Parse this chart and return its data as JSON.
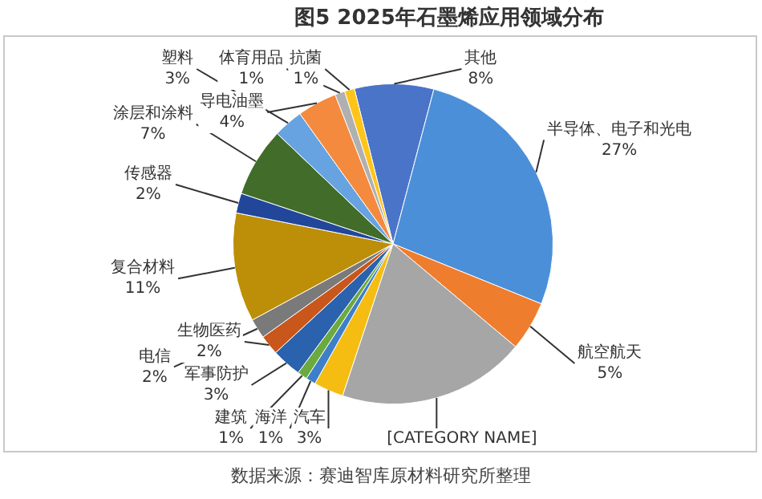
{
  "chart_data": {
    "type": "pie",
    "title": "图5  2025年石墨烯应用领域分布",
    "categories": [
      "其他",
      "半导体、电子和光电",
      "航空航天",
      "[CATEGORY NAME]",
      "汽车",
      "海洋",
      "建筑",
      "军事防护",
      "生物医药",
      "电信",
      "复合材料",
      "传感器",
      "涂层和涂料",
      "塑料",
      "导电油墨",
      "体育用品",
      "抗菌"
    ],
    "values": [
      8,
      27,
      5,
      19,
      3,
      1,
      1,
      3,
      2,
      2,
      11,
      2,
      7,
      3,
      4,
      1,
      1
    ],
    "value_labels": [
      "8%",
      "27%",
      "5%",
      null,
      "3%",
      "1%",
      "1%",
      "3%",
      "2%",
      "2%",
      "11%",
      "2%",
      "7%",
      "3%",
      "4%",
      "1%",
      "1%"
    ],
    "colors": [
      "#4a74c8",
      "#4b8fd8",
      "#ef7d2e",
      "#a6a6a6",
      "#f5bd12",
      "#3f7fc8",
      "#6aaa3f",
      "#2a62ad",
      "#c9561a",
      "#7a7a7a",
      "#bd8e08",
      "#22479a",
      "#416c2a",
      "#67a3e0",
      "#f48a3e",
      "#b0b0b0",
      "#ffc41a"
    ],
    "legend": false,
    "annotations": [
      "数据来源：赛迪智库原材料研究所整理"
    ]
  }
}
